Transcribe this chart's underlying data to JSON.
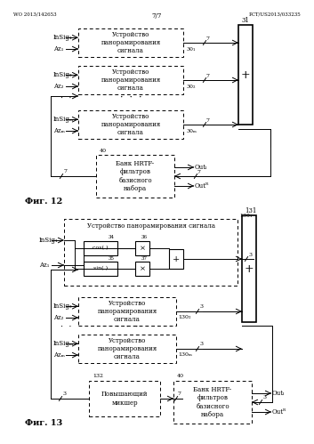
{
  "header_left": "WO 2013/142653",
  "header_right": "PCT/US2013/033235",
  "page_num": "7/7",
  "bg_color": "#ffffff",
  "line_color": "#000000",
  "fig12_label": "Фиг. 12",
  "fig13_label": "Фиг. 13",
  "pan_text": "Устройство\nпанорамирования\nсигнала",
  "hrtf_text": "Банк HRTF-\nфильтров\nбазисного\nнабора",
  "boost_text": "Повышающий\nмикшер",
  "pan_signal_text": "Устройство панорамирования сигнала",
  "cos_text": "cos( )",
  "sin_text": "sin( )",
  "out_L": "Outₗ",
  "out_R": "Outᴿ",
  "insig1": "InSig₁",
  "insig2": "InSig₂",
  "insigM": "InSigₘ",
  "az1": "Az₁",
  "az2": "Az₂",
  "azM": "Azₘ",
  "lbl30_1": "30₁",
  "lbl30_2": "30₂",
  "lbl30_M": "30ₘ",
  "lbl130_1": "130₁",
  "lbl130_2": "130₂",
  "lbl130_M": "130ₘ"
}
